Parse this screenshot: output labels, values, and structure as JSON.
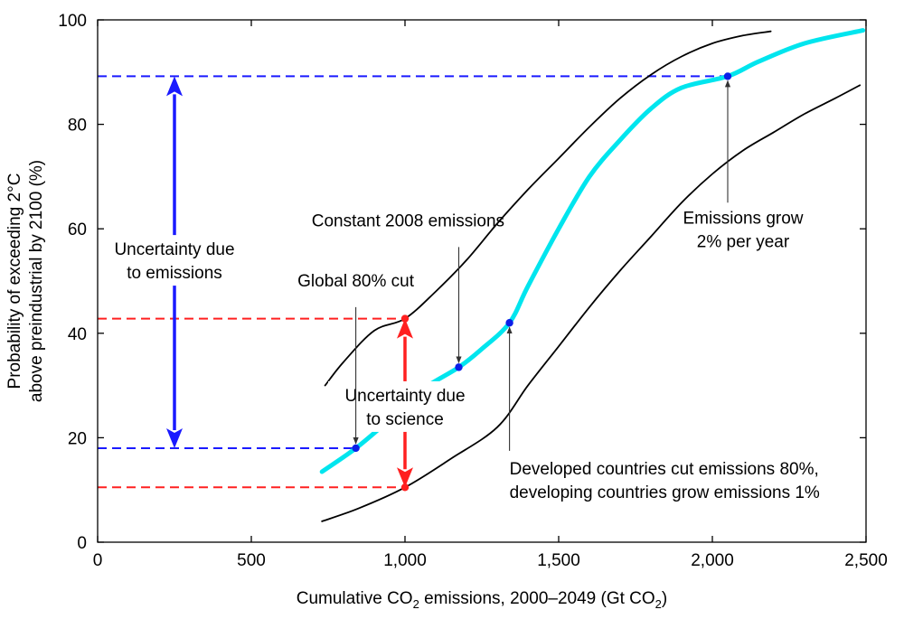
{
  "chart_data": {
    "type": "line",
    "xlabel_parts": [
      "Cumulative CO",
      "2",
      " emissions, 2000–2049 (Gt CO",
      "2",
      ")"
    ],
    "ylabel_lines": [
      "Probability of exceeding 2°C",
      "above preindustrial by 2100 (%)"
    ],
    "xlim": [
      0,
      2500
    ],
    "ylim": [
      0,
      100
    ],
    "x_ticks": [
      0,
      500,
      1000,
      1500,
      2000,
      2500
    ],
    "x_tick_labels": [
      "0",
      "500",
      "1,000",
      "1,500",
      "2,000",
      "2,500"
    ],
    "y_ticks": [
      0,
      20,
      40,
      60,
      80,
      100
    ],
    "y_tick_labels": [
      "0",
      "20",
      "40",
      "60",
      "80",
      "100"
    ],
    "series": [
      {
        "key": "upper",
        "color": "#000000",
        "points": [
          [
            740,
            30
          ],
          [
            800,
            34.5
          ],
          [
            900,
            40.5
          ],
          [
            1000,
            42.8
          ],
          [
            1100,
            48
          ],
          [
            1200,
            54
          ],
          [
            1300,
            61
          ],
          [
            1400,
            67.5
          ],
          [
            1500,
            73.5
          ],
          [
            1600,
            79.5
          ],
          [
            1700,
            85
          ],
          [
            1800,
            89.5
          ],
          [
            1900,
            93
          ],
          [
            2000,
            95.5
          ],
          [
            2100,
            97
          ],
          [
            2190,
            97.8
          ]
        ]
      },
      {
        "key": "central",
        "color": "#00e5ee",
        "points": [
          [
            730,
            13.5
          ],
          [
            840,
            18
          ],
          [
            950,
            23.5
          ],
          [
            1050,
            29
          ],
          [
            1175,
            33.5
          ],
          [
            1250,
            37
          ],
          [
            1340,
            42
          ],
          [
            1400,
            49
          ],
          [
            1500,
            60
          ],
          [
            1600,
            70
          ],
          [
            1700,
            77
          ],
          [
            1800,
            83
          ],
          [
            1900,
            87
          ],
          [
            2050,
            89.2
          ],
          [
            2150,
            92
          ],
          [
            2300,
            95.5
          ],
          [
            2490,
            98
          ]
        ]
      },
      {
        "key": "lower",
        "color": "#000000",
        "points": [
          [
            730,
            4
          ],
          [
            850,
            6.5
          ],
          [
            1000,
            10.5
          ],
          [
            1150,
            16
          ],
          [
            1300,
            22
          ],
          [
            1400,
            30
          ],
          [
            1500,
            37.5
          ],
          [
            1600,
            45
          ],
          [
            1700,
            52
          ],
          [
            1800,
            58.5
          ],
          [
            1900,
            65
          ],
          [
            2000,
            70.5
          ],
          [
            2100,
            75
          ],
          [
            2200,
            78.5
          ],
          [
            2300,
            82
          ],
          [
            2400,
            85
          ],
          [
            2480,
            87.5
          ]
        ]
      }
    ],
    "markers": [
      {
        "key": "global-80-cut",
        "x": 840,
        "y": 18,
        "color": "#0b1fe8"
      },
      {
        "key": "constant-2008",
        "x": 1175,
        "y": 33.5,
        "color": "#0b1fe8"
      },
      {
        "key": "developed-cut",
        "x": 1340,
        "y": 42,
        "color": "#0b1fe8"
      },
      {
        "key": "emissions-grow",
        "x": 2050,
        "y": 89.2,
        "color": "#0b1fe8"
      },
      {
        "key": "science-upper",
        "x": 1000,
        "y": 42.8,
        "color": "#ff2020"
      },
      {
        "key": "science-lower",
        "x": 1000,
        "y": 10.5,
        "color": "#ff2020"
      }
    ],
    "reference_lines": [
      {
        "y": 89.2,
        "x_end": 2050,
        "color": "#1a1aff"
      },
      {
        "y": 18,
        "x_end": 840,
        "color": "#1a1aff"
      },
      {
        "y": 42.8,
        "x_end": 1000,
        "color": "#ff2020"
      },
      {
        "y": 10.5,
        "x_end": 1000,
        "color": "#ff2020"
      }
    ],
    "ranges": [
      {
        "key": "emissions",
        "x": 250,
        "y_from": 18,
        "y_to": 89.2,
        "color": "#1a1aff",
        "lines": [
          "Uncertainty due",
          "to emissions"
        ],
        "label_x": 250,
        "label_y": 55
      },
      {
        "key": "science",
        "x": 1000,
        "y_from": 10.5,
        "y_to": 42.8,
        "color": "#ff2020",
        "lines": [
          "Uncertainty due",
          "to science"
        ],
        "label_x": 1000,
        "label_y": 27
      }
    ],
    "annotations": [
      {
        "key": "global-80-cut",
        "lines": [
          "Global 80% cut"
        ],
        "text_x": 840,
        "text_y": 49,
        "anchor": "middle",
        "arrow_from": [
          840,
          45
        ],
        "arrow_to": [
          840,
          18
        ]
      },
      {
        "key": "constant-2008",
        "lines": [
          "Constant 2008 emissions"
        ],
        "text_x": 1010,
        "text_y": 60.5,
        "anchor": "middle",
        "arrow_from": [
          1175,
          56.5
        ],
        "arrow_to": [
          1175,
          33.5
        ]
      },
      {
        "key": "emissions-grow",
        "lines": [
          "Emissions grow",
          "2% per year"
        ],
        "text_x": 2100,
        "text_y": 61,
        "anchor": "middle",
        "arrow_from": [
          2050,
          65
        ],
        "arrow_to": [
          2050,
          89.2
        ]
      },
      {
        "key": "developed-cut",
        "lines": [
          "Developed countries cut emissions 80%,",
          "developing countries grow emissions 1%"
        ],
        "text_x": 1340,
        "text_y": 13,
        "anchor": "start",
        "arrow_from": [
          1340,
          17.5
        ],
        "arrow_to": [
          1340,
          42
        ]
      }
    ]
  }
}
